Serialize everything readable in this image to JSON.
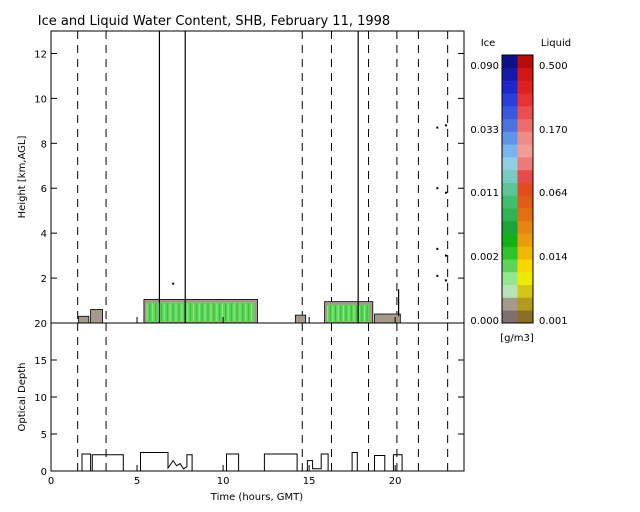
{
  "chart_data": [
    {
      "type": "heatmap",
      "title": "Ice and Liquid Water Content, SHB, February 11, 1998",
      "ylabel": "Height [km,AGL]",
      "xlim": [
        0,
        24
      ],
      "ylim": [
        0,
        13
      ],
      "yticks": [
        2,
        4,
        6,
        8,
        10,
        12
      ],
      "dashed_reference_times": [
        1.55,
        3.2,
        14.6,
        16.3,
        18.45,
        20.1,
        21.35,
        23.05
      ],
      "cloud_layers": [
        {
          "start": 1.6,
          "end": 2.2,
          "base": 0.0,
          "top": 0.3,
          "phase": "mixed low"
        },
        {
          "start": 2.3,
          "end": 3.0,
          "base": 0.0,
          "top": 0.6,
          "phase": "mixed low"
        },
        {
          "start": 5.4,
          "end": 12.0,
          "base": 0.0,
          "top": 1.05,
          "phase": "liquid"
        },
        {
          "start": 14.2,
          "end": 14.8,
          "base": 0.0,
          "top": 0.35,
          "phase": "mixed low"
        },
        {
          "start": 15.9,
          "end": 18.7,
          "base": 0.0,
          "top": 0.95,
          "phase": "liquid"
        },
        {
          "start": 18.8,
          "end": 20.3,
          "base": 0.0,
          "top": 0.4,
          "phase": "mixed low"
        }
      ],
      "vertical_streaks": [
        {
          "time": 6.3,
          "from": 0.0,
          "to": 13.0
        },
        {
          "time": 7.8,
          "from": 0.0,
          "to": 13.0
        },
        {
          "time": 17.85,
          "from": 0.0,
          "to": 13.0
        },
        {
          "time": 20.2,
          "from": 0.3,
          "to": 1.5
        }
      ],
      "isolated_points": [
        {
          "time": 7.1,
          "height": 1.75
        },
        {
          "time": 22.45,
          "height": 8.7
        },
        {
          "time": 22.95,
          "height": 8.8
        },
        {
          "time": 22.45,
          "height": 6.0
        },
        {
          "time": 22.95,
          "height": 5.8
        },
        {
          "time": 22.45,
          "height": 3.3
        },
        {
          "time": 22.95,
          "height": 3.0
        },
        {
          "time": 22.45,
          "height": 2.1
        },
        {
          "time": 22.95,
          "height": 1.9
        }
      ]
    },
    {
      "type": "line",
      "ylabel": "Optical Depth",
      "xlabel": "Time (hours, GMT)",
      "xlim": [
        0,
        24
      ],
      "ylim": [
        0,
        20
      ],
      "xticks": [
        0,
        5,
        10,
        15,
        20
      ],
      "yticks": [
        0,
        5,
        10,
        15,
        20
      ],
      "dashed_reference_times": [
        1.55,
        3.2,
        14.6,
        16.3,
        18.45,
        20.1,
        21.35,
        23.05
      ],
      "series": [
        {
          "x": [
            1.8,
            1.8,
            2.3,
            2.3,
            2.4,
            2.4,
            4.2,
            4.2,
            5.2,
            5.2,
            6.8,
            6.8,
            7.1,
            7.3,
            7.5,
            7.7,
            7.9,
            7.9,
            8.2,
            8.2,
            10.2,
            10.2,
            10.9,
            10.9,
            12.4,
            12.4,
            14.3,
            14.3,
            14.9,
            14.9,
            15.2,
            15.2,
            15.7,
            15.7,
            16.1,
            16.1,
            17.5,
            17.5,
            17.8,
            17.8,
            18.8,
            18.8,
            19.4,
            19.4,
            19.9,
            19.9,
            20.4,
            20.4
          ],
          "y": [
            0,
            2.3,
            2.3,
            0,
            0,
            2.2,
            2.2,
            0,
            0,
            2.5,
            2.5,
            0.4,
            1.4,
            0.7,
            1.0,
            0.3,
            0.6,
            2.2,
            2.2,
            0,
            0,
            2.3,
            2.3,
            0,
            0,
            2.3,
            2.3,
            0,
            0,
            1.4,
            1.4,
            0.3,
            0.3,
            2.3,
            2.3,
            0,
            0,
            2.5,
            2.5,
            0,
            0,
            2.1,
            2.1,
            0,
            0,
            2.2,
            2.2,
            0
          ]
        }
      ]
    }
  ],
  "colorbar": {
    "ice_label": "Ice",
    "liquid_label": "Liquid",
    "unit": "[g/m3]",
    "ice_ticks": [
      "0.000",
      "0.002",
      "0.011",
      "0.033",
      "0.090"
    ],
    "liquid_ticks": [
      "0.001",
      "0.014",
      "0.064",
      "0.170",
      "0.500"
    ],
    "ice_colors": [
      "#7f6f6f",
      "#a39a8c",
      "#b7e3b5",
      "#94e68f",
      "#5fd45c",
      "#2ec32b",
      "#11b217",
      "#1aa53a",
      "#2eb253",
      "#41bd6e",
      "#5cc69a",
      "#78cbc0",
      "#8fcfe4",
      "#7ab4ee",
      "#5f95e8",
      "#4a73e0",
      "#3a57de",
      "#2a3ed8",
      "#1d28cc",
      "#1617ab",
      "#0f0f88"
    ],
    "liquid_colors": [
      "#8c6d26",
      "#b39a1b",
      "#d3c516",
      "#efe800",
      "#f8d700",
      "#f2b800",
      "#ea9c0c",
      "#e6860f",
      "#e27013",
      "#e05d18",
      "#e24d1f",
      "#e64a4a",
      "#ec7a78",
      "#f39c94",
      "#f08c86",
      "#ee6c6c",
      "#ea4e4e",
      "#e53333",
      "#de2020",
      "#d11616",
      "#b80b0b"
    ]
  }
}
